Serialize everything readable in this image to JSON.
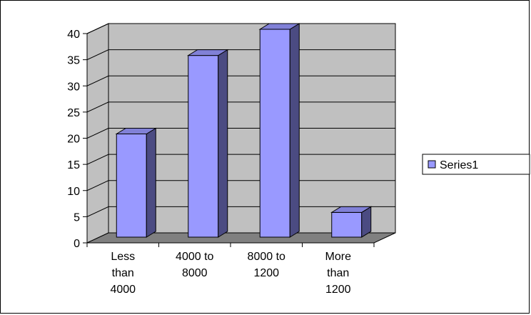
{
  "chart_data": {
    "type": "bar",
    "categories": [
      [
        "Less",
        "than",
        "4000"
      ],
      [
        "4000 to",
        "8000"
      ],
      [
        "8000 to",
        "1200"
      ],
      [
        "More",
        "than",
        "1200"
      ]
    ],
    "series": [
      {
        "name": "Series1",
        "values": [
          20,
          35,
          40,
          5
        ]
      }
    ],
    "yticks": [
      "0",
      "5",
      "10",
      "15",
      "20",
      "25",
      "30",
      "35",
      "40"
    ],
    "ylim": [
      0,
      40
    ],
    "grid": true,
    "legend_position": "right",
    "colors": {
      "bar_front": "#9999FF",
      "bar_side": "#4B4B82",
      "bar_top": "#8181D7",
      "wall": "#C0C0C0",
      "floor": "#808080",
      "outline": "#000000"
    }
  }
}
